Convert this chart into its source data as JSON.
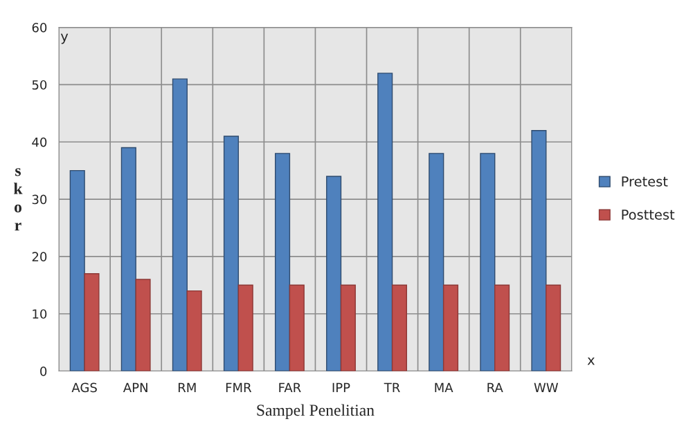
{
  "chart_data": {
    "type": "bar",
    "xlabel": "Sampel Penelitian",
    "ylabel": "skor",
    "categories": [
      "AGS",
      "APN",
      "RM",
      "FMR",
      "FAR",
      "IPP",
      "TR",
      "MA",
      "RA",
      "WW"
    ],
    "series": [
      {
        "name": "Pretest",
        "color": "#4f81bd",
        "values": [
          35,
          39,
          51,
          41,
          38,
          34,
          52,
          38,
          38,
          42
        ]
      },
      {
        "name": "Posttest",
        "color": "#c0504d",
        "values": [
          17,
          16,
          14,
          15,
          15,
          15,
          15,
          15,
          15,
          15
        ]
      }
    ],
    "ylim": [
      0,
      60
    ],
    "yticks": [
      0,
      10,
      20,
      30,
      40,
      50,
      60
    ],
    "grid": true,
    "legend": "right",
    "annotations": [
      "y",
      "x"
    ]
  }
}
